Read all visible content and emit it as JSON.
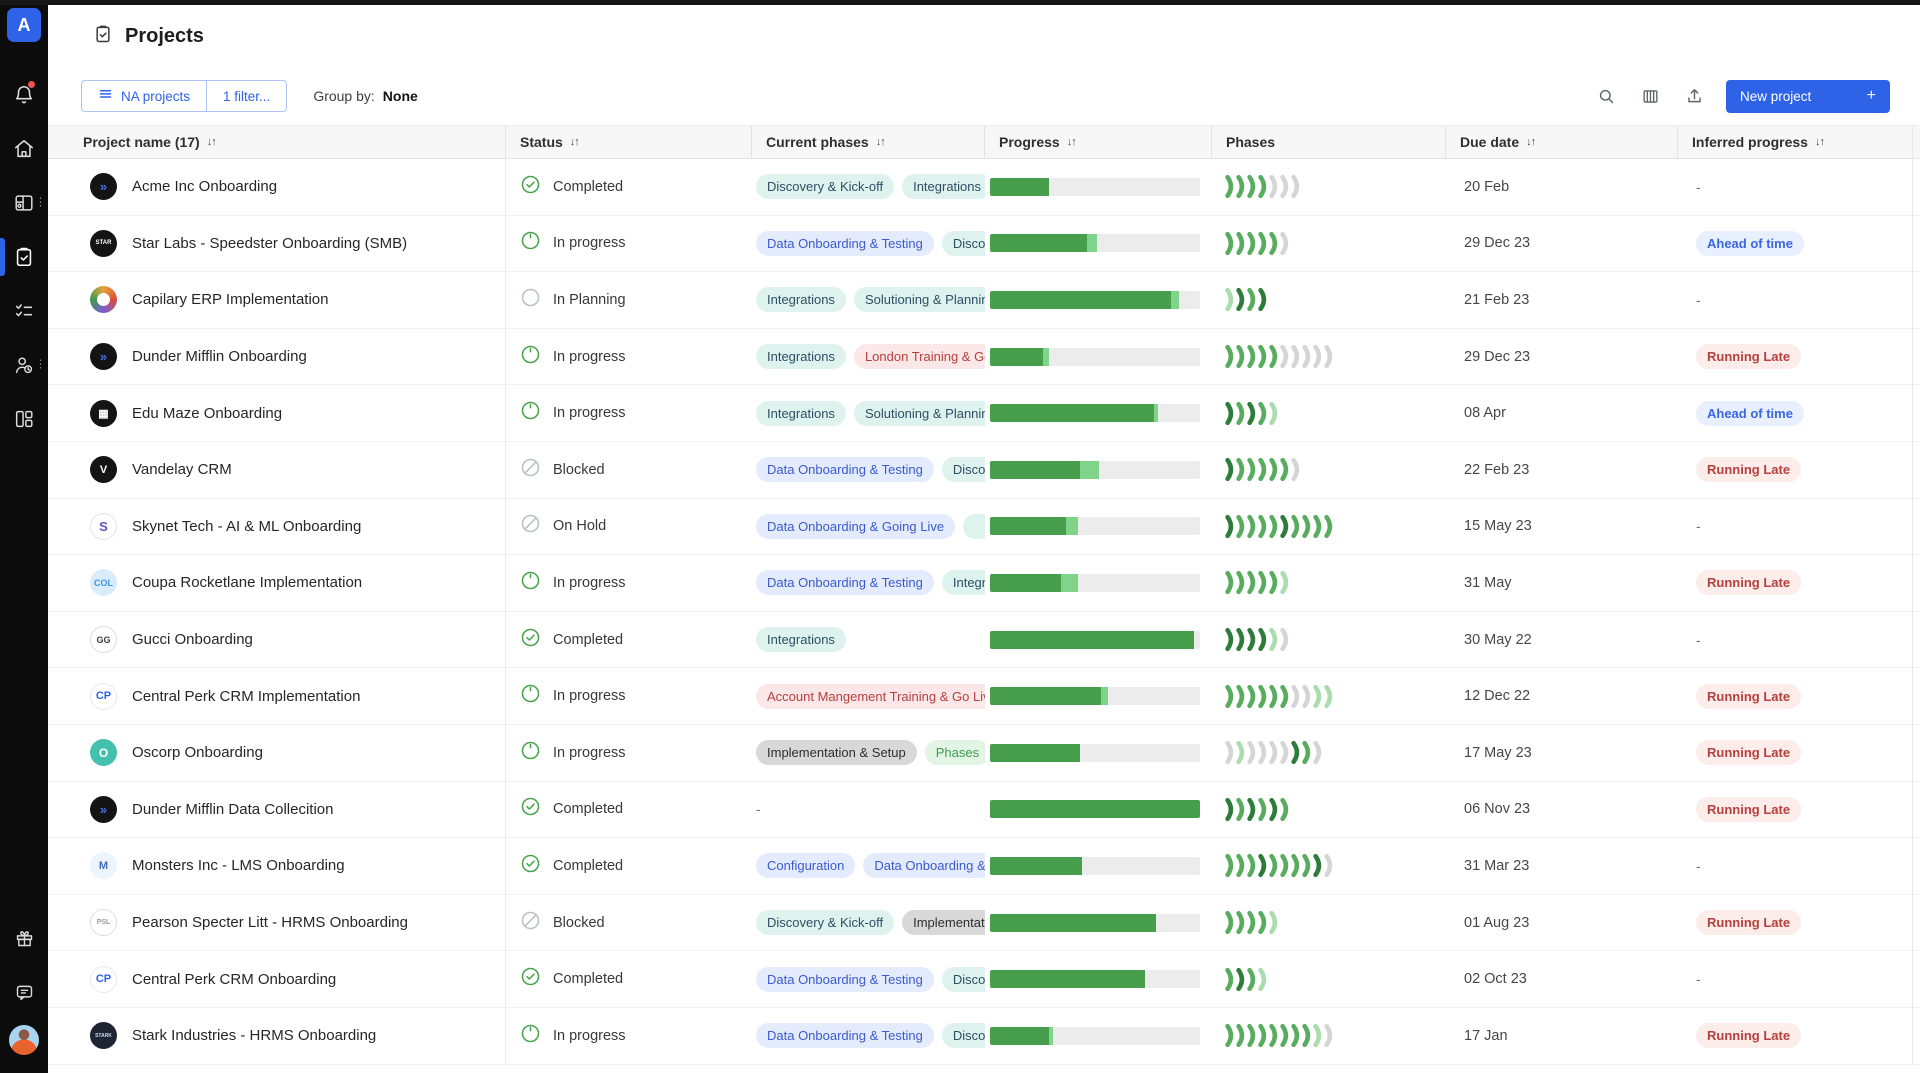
{
  "app": {
    "logo_letter": "A"
  },
  "theme": {
    "accent": "#2e62e7",
    "progress_fill": "#479e4d",
    "progress_fill_light": "#7fd489",
    "chevron_colors": {
      "g": "#57ac5e",
      "d": "#2e7c39",
      "l": "#abdcae",
      "x": "#d5d5d5"
    },
    "status_green": "#47a44b",
    "status_gray": "#b9bfc5"
  },
  "sidebar": {
    "icons": [
      "notifications-bell",
      "home",
      "planner-board",
      "projects-clipboard",
      "tasks-checklist",
      "resources-people",
      "dashboards-grid",
      "gift",
      "chat",
      "user-avatar"
    ],
    "active": "projects-clipboard",
    "has_notification_dot": true
  },
  "header": {
    "title": "Projects"
  },
  "toolbar": {
    "scope_button": "NA projects",
    "filter_button": "1 filter...",
    "group_by_label": "Group by:",
    "group_by_value": "None",
    "icons": [
      "search-icon",
      "columns-icon",
      "export-icon"
    ],
    "new_project_label": "New project",
    "new_project_plus": "+"
  },
  "table": {
    "columns": [
      {
        "label": "Project name (17)",
        "sort": true
      },
      {
        "label": "Status",
        "sort": true
      },
      {
        "label": "Current phases",
        "sort": true
      },
      {
        "label": "Progress",
        "sort": true
      },
      {
        "label": "Phases",
        "sort": false
      },
      {
        "label": "Due date",
        "sort": true
      },
      {
        "label": "Inferred progress",
        "sort": true
      }
    ],
    "sort_glyph": "↓↑",
    "rows": [
      {
        "name": "Acme Inc Onboarding",
        "logo": {
          "text": "»",
          "bg": "#141414",
          "color": "#4272e8",
          "fs": 13
        },
        "status": {
          "icon": "completed",
          "label": "Completed"
        },
        "tags": [
          {
            "label": "Discovery & Kick-off",
            "type": "teal"
          },
          {
            "label": "Integrations",
            "type": "teal"
          }
        ],
        "progress": {
          "dark": 28,
          "light": 0
        },
        "chevrons": [
          "g",
          "g",
          "g",
          "g",
          "x",
          "x",
          "x"
        ],
        "due": "20 Feb",
        "inferred": {
          "label": "-",
          "type": "none"
        }
      },
      {
        "name": "Star Labs - Speedster Onboarding (SMB)",
        "logo": {
          "text": "STAR",
          "bg": "#141414",
          "color": "#ffffff",
          "fs": 6
        },
        "status": {
          "icon": "inprogress",
          "label": "In progress"
        },
        "tags": [
          {
            "label": "Data Onboarding & Testing",
            "type": "blue"
          },
          {
            "label": "Discovery & Kick-off",
            "type": "teal"
          }
        ],
        "progress": {
          "dark": 46,
          "light": 5
        },
        "chevrons": [
          "g",
          "g",
          "g",
          "g",
          "g",
          "x"
        ],
        "due": "29 Dec 23",
        "inferred": {
          "label": "Ahead of time",
          "type": "ahead"
        }
      },
      {
        "name": "Capilary ERP Implementation",
        "logo": {
          "text": "",
          "bg": "knot",
          "color": "#ffffff",
          "fs": 0
        },
        "status": {
          "icon": "planning",
          "label": "In Planning"
        },
        "tags": [
          {
            "label": "Integrations",
            "type": "teal"
          },
          {
            "label": "Solutioning & Planning",
            "type": "teal"
          }
        ],
        "progress": {
          "dark": 86,
          "light": 4
        },
        "chevrons": [
          "l",
          "d",
          "g",
          "d"
        ],
        "due": "21 Feb 23",
        "inferred": {
          "label": "-",
          "type": "none"
        }
      },
      {
        "name": "Dunder Mifflin Onboarding",
        "logo": {
          "text": "»",
          "bg": "#141414",
          "color": "#4272e8",
          "fs": 13
        },
        "status": {
          "icon": "inprogress",
          "label": "In progress"
        },
        "tags": [
          {
            "label": "Integrations",
            "type": "teal"
          },
          {
            "label": "London Training & Go Live",
            "type": "red"
          }
        ],
        "progress": {
          "dark": 25,
          "light": 3
        },
        "chevrons": [
          "g",
          "g",
          "g",
          "g",
          "g",
          "x",
          "x",
          "x",
          "x",
          "x"
        ],
        "due": "29 Dec 23",
        "inferred": {
          "label": "Running Late",
          "type": "late"
        }
      },
      {
        "name": "Edu Maze Onboarding",
        "logo": {
          "text": "▦",
          "bg": "#141414",
          "color": "#ffffff",
          "fs": 11
        },
        "status": {
          "icon": "inprogress",
          "label": "In progress"
        },
        "tags": [
          {
            "label": "Integrations",
            "type": "teal"
          },
          {
            "label": "Solutioning & Planning",
            "type": "teal"
          }
        ],
        "progress": {
          "dark": 78,
          "light": 2
        },
        "chevrons": [
          "d",
          "g",
          "d",
          "g",
          "l"
        ],
        "due": "08 Apr",
        "inferred": {
          "label": "Ahead of time",
          "type": "ahead"
        }
      },
      {
        "name": "Vandelay CRM",
        "logo": {
          "text": "V",
          "bg": "#141414",
          "color": "#ffffff",
          "fs": 11
        },
        "status": {
          "icon": "blocked",
          "label": "Blocked"
        },
        "tags": [
          {
            "label": "Data Onboarding & Testing",
            "type": "blue"
          },
          {
            "label": "Discovery & Kick-off",
            "type": "teal"
          }
        ],
        "progress": {
          "dark": 43,
          "light": 9
        },
        "chevrons": [
          "d",
          "g",
          "g",
          "g",
          "g",
          "g",
          "x"
        ],
        "due": "22 Feb 23",
        "inferred": {
          "label": "Running Late",
          "type": "late"
        }
      },
      {
        "name": "Skynet Tech - AI & ML Onboarding",
        "logo": {
          "text": "S",
          "bg": "#ffffff",
          "color": "#6a4fc3",
          "fs": 13,
          "border": "#e4e4e4"
        },
        "status": {
          "icon": "onhold",
          "label": "On Hold"
        },
        "tags": [
          {
            "label": "Data Onboarding & Going Live",
            "type": "blue"
          },
          {
            "label": "",
            "type": "teal"
          }
        ],
        "progress": {
          "dark": 36,
          "light": 6
        },
        "chevrons": [
          "d",
          "g",
          "g",
          "g",
          "g",
          "d",
          "g",
          "g",
          "g",
          "g"
        ],
        "due": "15 May 23",
        "inferred": {
          "label": "-",
          "type": "none"
        }
      },
      {
        "name": "Coupa Rocketlane Implementation",
        "logo": {
          "text": "COL",
          "bg": "#d9ecfa",
          "color": "#4293d8",
          "fs": 9
        },
        "status": {
          "icon": "inprogress",
          "label": "In progress"
        },
        "tags": [
          {
            "label": "Data Onboarding & Testing",
            "type": "blue"
          },
          {
            "label": "Integrations",
            "type": "teal"
          }
        ],
        "progress": {
          "dark": 34,
          "light": 8
        },
        "chevrons": [
          "g",
          "g",
          "g",
          "g",
          "g",
          "l"
        ],
        "due": "31 May",
        "inferred": {
          "label": "Running Late",
          "type": "late"
        }
      },
      {
        "name": "Gucci Onboarding",
        "logo": {
          "text": "GG",
          "bg": "#ffffff",
          "color": "#3c3c3c",
          "fs": 9,
          "border": "#dcdcdc"
        },
        "status": {
          "icon": "completed",
          "label": "Completed"
        },
        "tags": [
          {
            "label": "Integrations",
            "type": "teal"
          }
        ],
        "progress": {
          "dark": 97,
          "light": 0
        },
        "chevrons": [
          "d",
          "d",
          "d",
          "d",
          "l",
          "x"
        ],
        "due": "30 May 22",
        "inferred": {
          "label": "-",
          "type": "none"
        }
      },
      {
        "name": "Central Perk CRM Implementation",
        "logo": {
          "text": "CP",
          "bg": "#ffffff",
          "color": "#2e62e7",
          "fs": 11,
          "border": "#e8e8e8"
        },
        "status": {
          "icon": "inprogress",
          "label": "In progress"
        },
        "tags": [
          {
            "label": "Account Mangement Training & Go Live",
            "type": "red"
          }
        ],
        "progress": {
          "dark": 53,
          "light": 3
        },
        "chevrons": [
          "g",
          "g",
          "g",
          "g",
          "g",
          "g",
          "x",
          "x",
          "l",
          "l"
        ],
        "due": "12 Dec 22",
        "inferred": {
          "label": "Running Late",
          "type": "late"
        }
      },
      {
        "name": "Oscorp Onboarding",
        "logo": {
          "text": "O",
          "bg": "#43c1ae",
          "color": "#ffffff",
          "fs": 12
        },
        "status": {
          "icon": "inprogress",
          "label": "In progress"
        },
        "tags": [
          {
            "label": "Implementation & Setup",
            "type": "gray"
          },
          {
            "label": "Phases",
            "type": "green"
          }
        ],
        "progress": {
          "dark": 43,
          "light": 0
        },
        "chevrons": [
          "x",
          "l",
          "x",
          "x",
          "x",
          "x",
          "d",
          "g",
          "x"
        ],
        "due": "17 May 23",
        "inferred": {
          "label": "Running Late",
          "type": "late"
        }
      },
      {
        "name": "Dunder Mifflin Data Collecition",
        "logo": {
          "text": "»",
          "bg": "#141414",
          "color": "#4272e8",
          "fs": 13
        },
        "status": {
          "icon": "completed",
          "label": "Completed"
        },
        "tags": [],
        "phases_dash": "-",
        "progress": {
          "dark": 100,
          "light": 0
        },
        "chevrons": [
          "d",
          "g",
          "d",
          "g",
          "d",
          "g"
        ],
        "due": "06 Nov 23",
        "inferred": {
          "label": "Running Late",
          "type": "late"
        }
      },
      {
        "name": "Monsters Inc - LMS Onboarding",
        "logo": {
          "text": "M",
          "bg": "#eef4fb",
          "color": "#3e6fb8",
          "fs": 11
        },
        "status": {
          "icon": "completed",
          "label": "Completed"
        },
        "tags": [
          {
            "label": "Configuration",
            "type": "blue"
          },
          {
            "label": "Data Onboarding & Testing",
            "type": "blue"
          }
        ],
        "progress": {
          "dark": 44,
          "light": 0
        },
        "chevrons": [
          "g",
          "g",
          "g",
          "d",
          "g",
          "g",
          "g",
          "g",
          "d",
          "x"
        ],
        "due": "31 Mar 23",
        "inferred": {
          "label": "-",
          "type": "none"
        }
      },
      {
        "name": "Pearson Specter Litt - HRMS Onboarding",
        "logo": {
          "text": "PSL",
          "bg": "#ffffff",
          "color": "#9a9a9a",
          "fs": 7,
          "border": "#dedede"
        },
        "status": {
          "icon": "blocked",
          "label": "Blocked"
        },
        "tags": [
          {
            "label": "Discovery & Kick-off",
            "type": "teal"
          },
          {
            "label": "Implementation & Setup",
            "type": "gray"
          }
        ],
        "progress": {
          "dark": 79,
          "light": 0
        },
        "chevrons": [
          "g",
          "g",
          "g",
          "g",
          "l"
        ],
        "due": "01 Aug 23",
        "inferred": {
          "label": "Running Late",
          "type": "late"
        }
      },
      {
        "name": "Central Perk CRM Onboarding",
        "logo": {
          "text": "CP",
          "bg": "#ffffff",
          "color": "#2e62e7",
          "fs": 11,
          "border": "#e8e8e8"
        },
        "status": {
          "icon": "completed",
          "label": "Completed"
        },
        "tags": [
          {
            "label": "Data Onboarding & Testing",
            "type": "blue"
          },
          {
            "label": "Discovery & Kick-off",
            "type": "teal"
          }
        ],
        "progress": {
          "dark": 74,
          "light": 0
        },
        "chevrons": [
          "g",
          "d",
          "g",
          "l"
        ],
        "due": "02 Oct 23",
        "inferred": {
          "label": "-",
          "type": "none"
        }
      },
      {
        "name": "Stark Industries - HRMS Onboarding",
        "logo": {
          "text": "STARK",
          "bg": "#1d2434",
          "color": "#cfd6e4",
          "fs": 5
        },
        "status": {
          "icon": "inprogress",
          "label": "In progress"
        },
        "tags": [
          {
            "label": "Data Onboarding & Testing",
            "type": "blue"
          },
          {
            "label": "Discovery & Kick-off",
            "type": "teal"
          }
        ],
        "progress": {
          "dark": 28,
          "light": 2
        },
        "chevrons": [
          "g",
          "g",
          "g",
          "g",
          "g",
          "g",
          "g",
          "g",
          "l",
          "x"
        ],
        "due": "17 Jan",
        "inferred": {
          "label": "Running Late",
          "type": "late"
        }
      }
    ]
  }
}
